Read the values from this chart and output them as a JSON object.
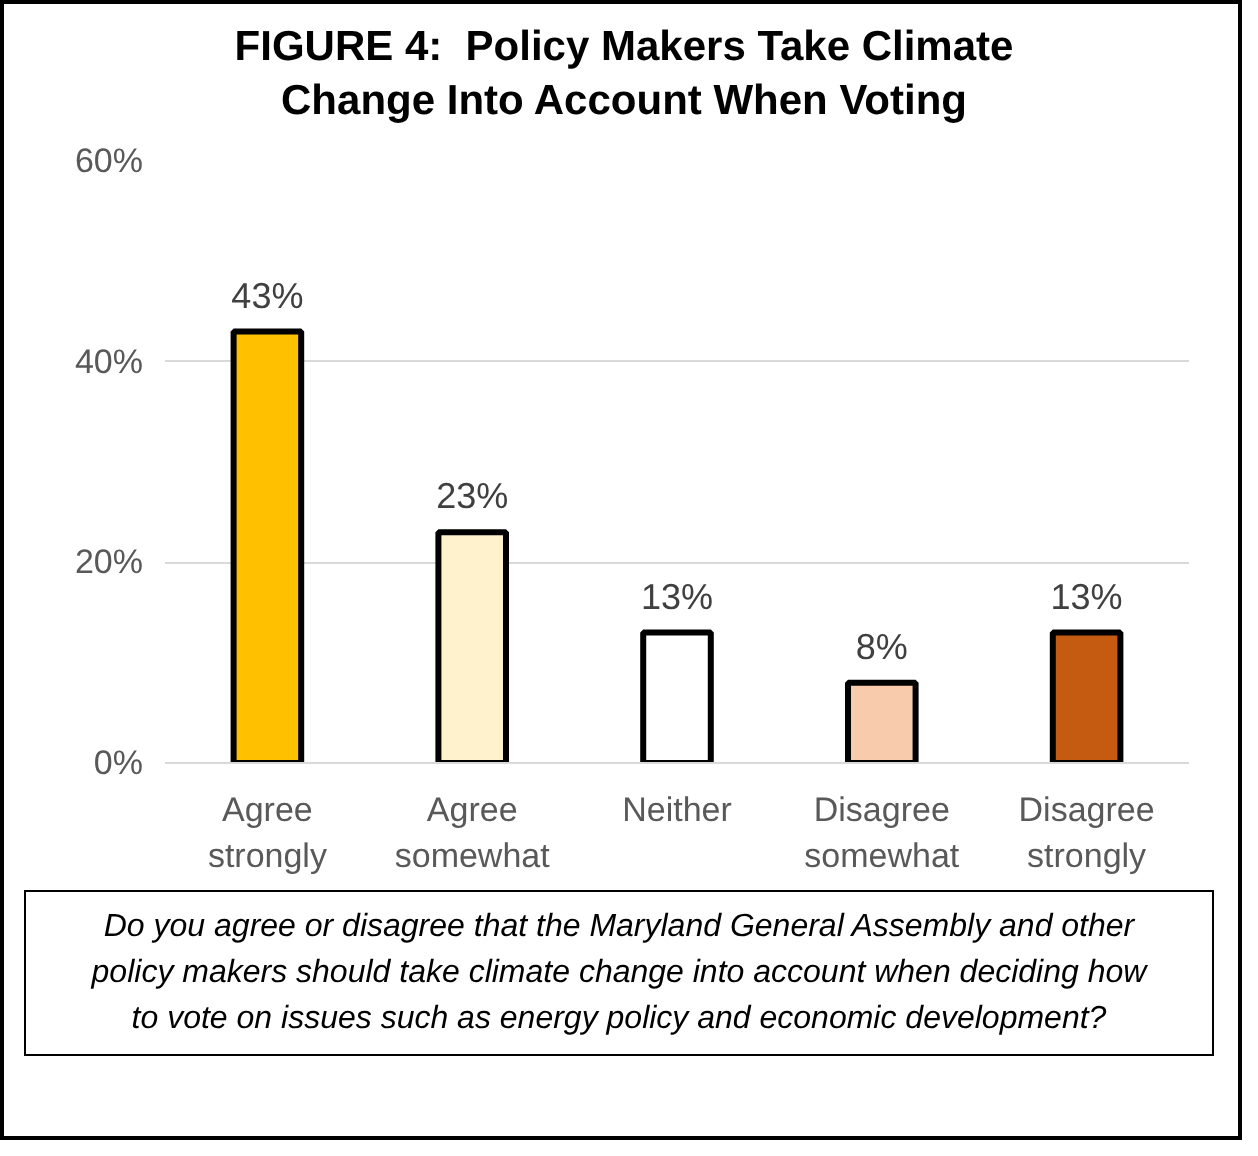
{
  "chart_data": {
    "type": "bar",
    "title": "FIGURE 4:  Policy Makers Take Climate Change Into Account When Voting",
    "categories": [
      "Agree strongly",
      "Agree somewhat",
      "Neither",
      "Disagree somewhat",
      "Disagree strongly"
    ],
    "values": [
      43,
      23,
      13,
      8,
      13
    ],
    "value_labels": [
      "43%",
      "23%",
      "13%",
      "8%",
      "13%"
    ],
    "colors": [
      "#ffc000",
      "#fff2cc",
      "#ffffff",
      "#f8cbad",
      "#c55a11"
    ],
    "ylim": [
      0,
      60
    ],
    "yticks": [
      {
        "value": 0,
        "label": "0%"
      },
      {
        "value": 20,
        "label": "20%"
      },
      {
        "value": 40,
        "label": "40%"
      },
      {
        "value": 60,
        "label": "60%"
      }
    ],
    "grid": "y",
    "annotations": [
      "Do you agree or disagree that the Maryland General Assembly and other policy makers should take climate change into account when deciding how to vote on issues such as energy policy and economic development?"
    ]
  }
}
